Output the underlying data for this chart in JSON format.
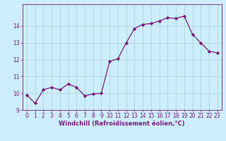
{
  "x": [
    0,
    1,
    2,
    3,
    4,
    5,
    6,
    7,
    8,
    9,
    10,
    11,
    12,
    13,
    14,
    15,
    16,
    17,
    18,
    19,
    20,
    21,
    22,
    23
  ],
  "y": [
    9.9,
    9.4,
    10.2,
    10.35,
    10.2,
    10.55,
    10.35,
    9.85,
    9.95,
    10.0,
    11.9,
    12.05,
    13.0,
    13.85,
    14.1,
    14.15,
    14.3,
    14.5,
    14.45,
    14.6,
    13.5,
    13.0,
    12.5,
    12.4
  ],
  "xlabel": "Windchill (Refroidissement éolien,°C)",
  "line_color": "#7b1a7b",
  "marker": "D",
  "marker_size": 2.2,
  "bg_color": "#cceeff",
  "grid_color": "#b0d4d4",
  "ylim": [
    9,
    15
  ],
  "xlim": [
    -0.5,
    23.5
  ],
  "yticks": [
    9,
    10,
    11,
    12,
    13,
    14
  ],
  "xticks": [
    0,
    1,
    2,
    3,
    4,
    5,
    6,
    7,
    8,
    9,
    10,
    11,
    12,
    13,
    14,
    15,
    16,
    17,
    18,
    19,
    20,
    21,
    22,
    23
  ],
  "tick_fontsize": 5.5,
  "xlabel_fontsize": 6.0
}
